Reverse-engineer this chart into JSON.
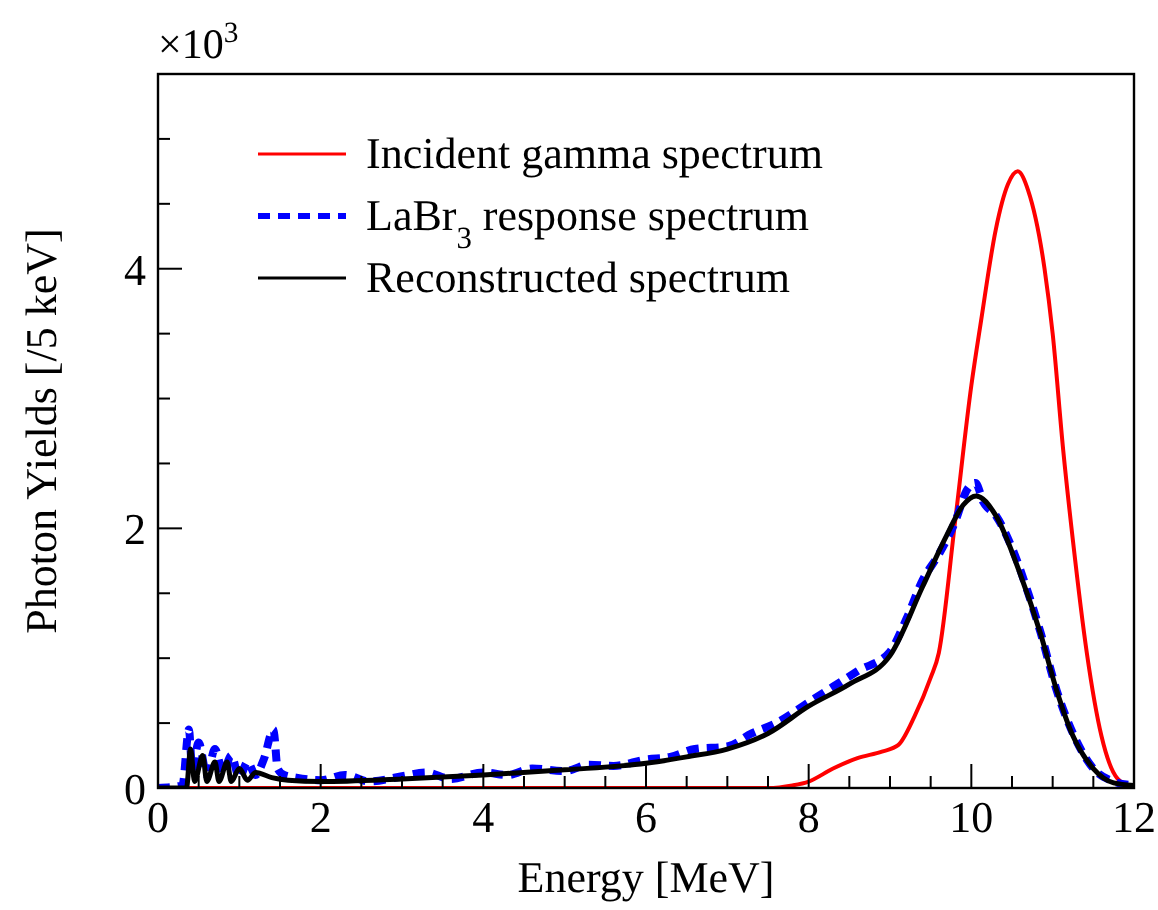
{
  "chart_data": {
    "type": "line",
    "xlabel": "Energy [MeV]",
    "ylabel": "Photon Yields [/5 keV]",
    "annotations": [
      "×10$^{3}$"
    ],
    "xlim": [
      0,
      12
    ],
    "ylim": [
      0,
      5.5
    ],
    "xticks": [
      0,
      {
        "value": 0.5,
        "label": null
      },
      2,
      {
        "value": 1,
        "label": null
      },
      {
        "value": 1.5,
        "label": null
      },
      {
        "value": 2.5,
        "label": null
      },
      {
        "value": 3,
        "label": null
      },
      {
        "value": 3.5,
        "label": null
      },
      4,
      {
        "value": 4.5,
        "label": null
      },
      {
        "value": 5,
        "label": null
      },
      {
        "value": 5.5,
        "label": null
      },
      6,
      {
        "value": 6.5,
        "label": null
      },
      {
        "value": 7,
        "label": null
      },
      {
        "value": 7.5,
        "label": null
      },
      8,
      {
        "value": 8.5,
        "label": null
      },
      {
        "value": 9,
        "label": null
      },
      {
        "value": 9.5,
        "label": null
      },
      10,
      {
        "value": 10.5,
        "label": null
      },
      {
        "value": 11,
        "label": null
      },
      {
        "value": 11.5,
        "label": null
      },
      12
    ],
    "yticks": [
      0,
      {
        "value": 0.5,
        "label": null
      },
      {
        "value": 1,
        "label": null
      },
      {
        "value": 1.5,
        "label": null
      },
      2,
      {
        "value": 2.5,
        "label": null
      },
      {
        "value": 3,
        "label": null
      },
      {
        "value": 3.5,
        "label": null
      },
      4,
      {
        "value": 4.5,
        "label": null
      },
      {
        "value": 5,
        "label": null
      }
    ],
    "grid": false,
    "legend": "top left",
    "marker": "none",
    "series": [
      {
        "name": "Incident gamma spectrum",
        "color": "#ff0000",
        "line_style": "solid",
        "x": [
          0,
          7.5,
          7.8,
          8.0,
          8.3,
          8.6,
          8.9,
          9.1,
          9.3,
          9.5,
          9.6,
          9.8,
          10.0,
          10.12,
          10.3,
          10.45,
          10.57,
          10.7,
          10.9,
          11.0,
          11.13,
          11.25,
          11.42,
          11.6,
          11.8,
          12
        ],
        "values": [
          0,
          0,
          0.02,
          0.05,
          0.15,
          0.23,
          0.28,
          0.33,
          0.55,
          0.85,
          1.04,
          2.05,
          3.1,
          3.6,
          4.3,
          4.65,
          4.75,
          4.6,
          4.0,
          3.5,
          2.6,
          1.9,
          1.04,
          0.4,
          0.07,
          0
        ]
      },
      {
        "name": "LaBr$_{3}$ response spectrum",
        "color": "#0000ff",
        "line_style": "dashed",
        "x": [
          0,
          0.3,
          0.38,
          0.42,
          0.5,
          0.6,
          0.7,
          0.8,
          0.9,
          1.0,
          1.1,
          1.2,
          1.3,
          1.42,
          1.47,
          1.55,
          1.7,
          2.0,
          2.3,
          2.6,
          3.0,
          3.3,
          3.6,
          4.0,
          4.3,
          4.6,
          5.0,
          5.3,
          5.6,
          6.0,
          6.3,
          6.6,
          7.0,
          7.3,
          7.6,
          8.0,
          8.3,
          8.6,
          9.0,
          9.2,
          9.4,
          9.6,
          9.8,
          9.95,
          10.05,
          10.15,
          10.3,
          10.5,
          10.7,
          10.85,
          11.05,
          11.25,
          11.5,
          11.75,
          12
        ],
        "values": [
          0,
          0.02,
          0.45,
          0.15,
          0.35,
          0.1,
          0.3,
          0.12,
          0.25,
          0.08,
          0.2,
          0.1,
          0.22,
          0.45,
          0.15,
          0.1,
          0.08,
          0.06,
          0.1,
          0.05,
          0.09,
          0.12,
          0.07,
          0.12,
          0.1,
          0.15,
          0.13,
          0.18,
          0.17,
          0.22,
          0.24,
          0.3,
          0.32,
          0.42,
          0.5,
          0.66,
          0.78,
          0.9,
          1.05,
          1.3,
          1.6,
          1.8,
          2.05,
          2.3,
          2.35,
          2.2,
          2.1,
          1.85,
          1.5,
          1.2,
          0.75,
          0.42,
          0.15,
          0.05,
          0.02
        ]
      },
      {
        "name": "Reconstructed spectrum",
        "color": "#000000",
        "line_style": "solid",
        "x": [
          0,
          0.35,
          0.4,
          0.45,
          0.55,
          0.6,
          0.7,
          0.75,
          0.85,
          0.9,
          1.0,
          1.1,
          1.2,
          1.4,
          1.6,
          2,
          3,
          4,
          5,
          6,
          6.5,
          7,
          7.5,
          8,
          8.5,
          9,
          9.4,
          9.7,
          9.9,
          10.06,
          10.3,
          10.6,
          10.85,
          11.05,
          11.25,
          11.5,
          11.75,
          12
        ],
        "values": [
          0,
          0,
          0.3,
          0.05,
          0.25,
          0.05,
          0.2,
          0.05,
          0.2,
          0.05,
          0.15,
          0.06,
          0.12,
          0.08,
          0.06,
          0.05,
          0.07,
          0.1,
          0.14,
          0.19,
          0.24,
          0.3,
          0.42,
          0.63,
          0.8,
          1.02,
          1.55,
          1.95,
          2.18,
          2.25,
          2.1,
          1.65,
          1.19,
          0.75,
          0.4,
          0.15,
          0.04,
          0.02
        ]
      }
    ]
  }
}
